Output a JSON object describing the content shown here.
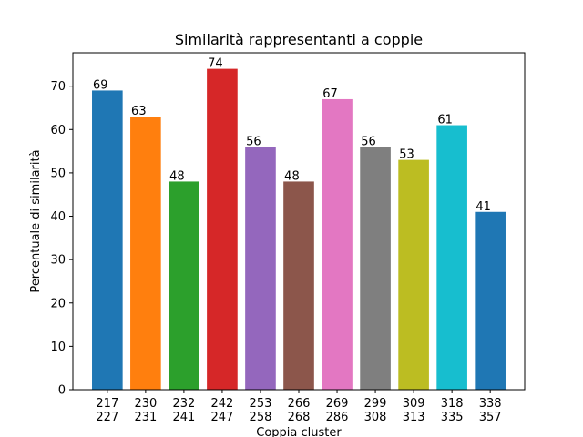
{
  "chart_data": {
    "type": "bar",
    "title": "Similarità rappresentanti a coppie",
    "xlabel": "Coppia cluster",
    "ylabel": "Percentuale di similarità",
    "categories": [
      [
        "217",
        "227"
      ],
      [
        "230",
        "231"
      ],
      [
        "232",
        "241"
      ],
      [
        "242",
        "247"
      ],
      [
        "253",
        "258"
      ],
      [
        "266",
        "268"
      ],
      [
        "269",
        "286"
      ],
      [
        "299",
        "308"
      ],
      [
        "309",
        "313"
      ],
      [
        "318",
        "335"
      ],
      [
        "338",
        "357"
      ]
    ],
    "values": [
      69,
      63,
      48,
      74,
      56,
      48,
      67,
      56,
      53,
      61,
      41
    ],
    "data_labels": [
      "69",
      "63",
      "48",
      "74",
      "56",
      "48",
      "67",
      "56",
      "53",
      "61",
      "41"
    ],
    "ylim": [
      0,
      77.7
    ],
    "yticks": [
      0,
      10,
      20,
      30,
      40,
      50,
      60,
      70
    ],
    "ytick_labels": [
      "0",
      "10",
      "20",
      "30",
      "40",
      "50",
      "60",
      "70"
    ],
    "grid": false,
    "legend": "none",
    "colors": [
      "#1f77b4",
      "#ff7f0e",
      "#2ca02c",
      "#d62728",
      "#9467bd",
      "#8c564b",
      "#e377c2",
      "#7f7f7f",
      "#bcbd22",
      "#17becf",
      "#1f77b4"
    ]
  }
}
